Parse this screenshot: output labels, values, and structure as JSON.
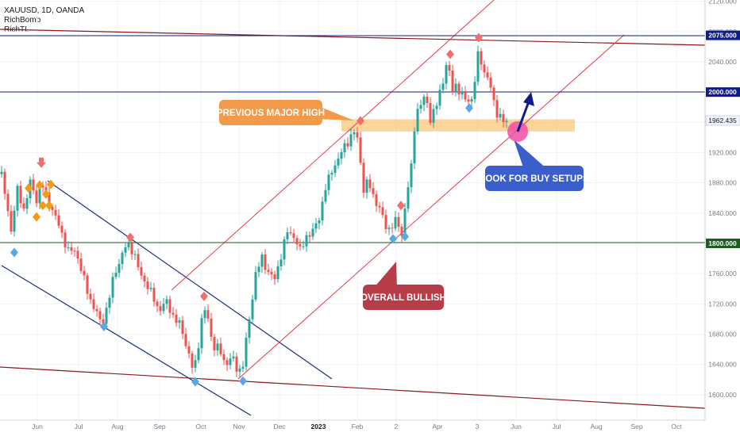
{
  "legend": {
    "symbol": "XAUUSD, 1D, OANDA",
    "indicator_1": "RichBomb",
    "indicator_2": "RichTL"
  },
  "colors": {
    "up_candle": "#26a69a",
    "down_candle": "#ef5350",
    "channel_red": "#e53945",
    "channel_blue": "#1b2e82",
    "level_blue": "#0d1b8c",
    "level_green": "#1b5e20",
    "trend_dark_red": "#8b1a1a",
    "zone_orange": "#f7b347",
    "callout_orange": "#f2994a",
    "callout_red": "#b83b48",
    "callout_blue": "#3a5fcd",
    "circle_pink": "#ee4fa8",
    "diamond_blue": "#5aa9e6",
    "diamond_red": "#ef6f6c",
    "diamond_orange": "#f39c12"
  },
  "chart_data": {
    "type": "candlestick",
    "symbol": "XAUUSD",
    "timeframe": "1D",
    "ylim": [
      1570,
      2125
    ],
    "y_ticks": [
      1600,
      1640,
      1680,
      1720,
      1760,
      1800,
      1840,
      1880,
      1920,
      1960,
      2000,
      2040,
      2080,
      2120
    ],
    "y_tick_labels": [
      "1600.000",
      "1640.000",
      "1680.000",
      "1720.000",
      "1760.000",
      "1800.000",
      "1840.000",
      "1880.000",
      "1920.000",
      "1960.000",
      "2000.000",
      "2040.000",
      "2080.000",
      "2120.000"
    ],
    "x_labels": [
      "Jun",
      "Jul",
      "Aug",
      "Sep",
      "Oct",
      "Nov",
      "Dec",
      "2023",
      "Feb",
      "2",
      "Apr",
      "3",
      "Jun",
      "Jul",
      "Aug",
      "Sep",
      "Oct"
    ],
    "x_labels_bold": [
      "2023"
    ],
    "horizontal_levels": [
      {
        "value": 2075,
        "label": "2075.000",
        "color_key": "level_blue"
      },
      {
        "value": 2000,
        "label": "2000.000",
        "color_key": "level_blue"
      },
      {
        "value": 1800,
        "label": "1800.000",
        "color_key": "level_green"
      }
    ],
    "current_price": {
      "value": 1962.435,
      "label": "1962.435"
    },
    "price_path": [
      [
        0,
        1900
      ],
      [
        8,
        1855
      ],
      [
        14,
        1818
      ],
      [
        22,
        1870
      ],
      [
        30,
        1845
      ],
      [
        38,
        1880
      ],
      [
        46,
        1858
      ],
      [
        52,
        1882
      ],
      [
        58,
        1862
      ],
      [
        66,
        1845
      ],
      [
        76,
        1818
      ],
      [
        86,
        1790
      ],
      [
        96,
        1790
      ],
      [
        104,
        1758
      ],
      [
        112,
        1730
      ],
      [
        120,
        1712
      ],
      [
        128,
        1692
      ],
      [
        136,
        1720
      ],
      [
        144,
        1760
      ],
      [
        152,
        1780
      ],
      [
        160,
        1800
      ],
      [
        168,
        1790
      ],
      [
        176,
        1760
      ],
      [
        184,
        1748
      ],
      [
        192,
        1730
      ],
      [
        200,
        1712
      ],
      [
        210,
        1722
      ],
      [
        220,
        1700
      ],
      [
        228,
        1690
      ],
      [
        236,
        1660
      ],
      [
        244,
        1628
      ],
      [
        250,
        1668
      ],
      [
        256,
        1715
      ],
      [
        262,
        1700
      ],
      [
        268,
        1665
      ],
      [
        276,
        1660
      ],
      [
        284,
        1640
      ],
      [
        292,
        1650
      ],
      [
        300,
        1630
      ],
      [
        306,
        1640
      ],
      [
        314,
        1700
      ],
      [
        322,
        1760
      ],
      [
        330,
        1780
      ],
      [
        338,
        1762
      ],
      [
        346,
        1752
      ],
      [
        354,
        1785
      ],
      [
        362,
        1815
      ],
      [
        370,
        1810
      ],
      [
        378,
        1790
      ],
      [
        386,
        1810
      ],
      [
        394,
        1815
      ],
      [
        402,
        1835
      ],
      [
        410,
        1872
      ],
      [
        418,
        1898
      ],
      [
        426,
        1910
      ],
      [
        434,
        1930
      ],
      [
        442,
        1940
      ],
      [
        448,
        1950
      ],
      [
        452,
        1928
      ],
      [
        458,
        1870
      ],
      [
        464,
        1882
      ],
      [
        472,
        1858
      ],
      [
        480,
        1840
      ],
      [
        488,
        1818
      ],
      [
        494,
        1822
      ],
      [
        500,
        1832
      ],
      [
        506,
        1812
      ],
      [
        512,
        1860
      ],
      [
        518,
        1902
      ],
      [
        522,
        1955
      ],
      [
        526,
        1975
      ],
      [
        530,
        1982
      ],
      [
        536,
        1998
      ],
      [
        542,
        1964
      ],
      [
        548,
        1975
      ],
      [
        554,
        2002
      ],
      [
        560,
        2022
      ],
      [
        564,
        2046
      ],
      [
        568,
        2002
      ],
      [
        574,
        2010
      ],
      [
        580,
        1995
      ],
      [
        586,
        1992
      ],
      [
        592,
        1990
      ],
      [
        596,
        1988
      ],
      [
        600,
        2040
      ],
      [
        604,
        2058
      ],
      [
        608,
        2028
      ],
      [
        614,
        2018
      ],
      [
        620,
        1998
      ],
      [
        626,
        1972
      ],
      [
        632,
        1962
      ],
      [
        640,
        1960
      ]
    ],
    "markers": [
      {
        "kind": "diamond",
        "color_key": "diamond_blue",
        "x": 18,
        "price": 1788
      },
      {
        "kind": "arrow-down",
        "color_key": "diamond_red",
        "x": 52,
        "price": 1905
      },
      {
        "kind": "diamond",
        "color_key": "diamond_orange",
        "x": 36,
        "price": 1873
      },
      {
        "kind": "diamond",
        "color_key": "diamond_orange",
        "x": 46,
        "price": 1835
      },
      {
        "kind": "diamond",
        "color_key": "diamond_orange",
        "x": 50,
        "price": 1877
      },
      {
        "kind": "diamond",
        "color_key": "diamond_orange",
        "x": 54,
        "price": 1850
      },
      {
        "kind": "diamond",
        "color_key": "diamond_orange",
        "x": 58,
        "price": 1865
      },
      {
        "kind": "diamond",
        "color_key": "diamond_orange",
        "x": 62,
        "price": 1850
      },
      {
        "kind": "diamond",
        "color_key": "diamond_orange",
        "x": 64,
        "price": 1878
      },
      {
        "kind": "diamond",
        "color_key": "diamond_red",
        "x": 164,
        "price": 1808
      },
      {
        "kind": "diamond",
        "color_key": "diamond_blue",
        "x": 131,
        "price": 1690
      },
      {
        "kind": "diamond",
        "color_key": "diamond_red",
        "x": 257,
        "price": 1730
      },
      {
        "kind": "diamond",
        "color_key": "diamond_blue",
        "x": 246,
        "price": 1617
      },
      {
        "kind": "diamond",
        "color_key": "diamond_blue",
        "x": 306,
        "price": 1618
      },
      {
        "kind": "diamond",
        "color_key": "diamond_red",
        "x": 454,
        "price": 1962
      },
      {
        "kind": "diamond",
        "color_key": "diamond_blue",
        "x": 495,
        "price": 1806
      },
      {
        "kind": "diamond",
        "color_key": "diamond_blue",
        "x": 510,
        "price": 1809
      },
      {
        "kind": "diamond",
        "color_key": "diamond_red",
        "x": 505,
        "price": 1850
      },
      {
        "kind": "diamond",
        "color_key": "diamond_red",
        "x": 567,
        "price": 2050
      },
      {
        "kind": "diamond",
        "color_key": "diamond_red",
        "x": 603,
        "price": 2072
      },
      {
        "kind": "diamond",
        "color_key": "diamond_blue",
        "x": 591,
        "price": 1979
      }
    ],
    "annotations": [
      {
        "id": "prev-high",
        "text": "PREVIOUS MAJOR HIGH",
        "color_key": "callout_orange"
      },
      {
        "id": "overall-bullish",
        "text": "OVERALL BULLISH",
        "color_key": "callout_red"
      },
      {
        "id": "buy-setups",
        "text": "LOOK FOR BUY SETUPS",
        "color_key": "callout_blue"
      }
    ],
    "zone": {
      "from": 1948,
      "to": 1964
    }
  }
}
